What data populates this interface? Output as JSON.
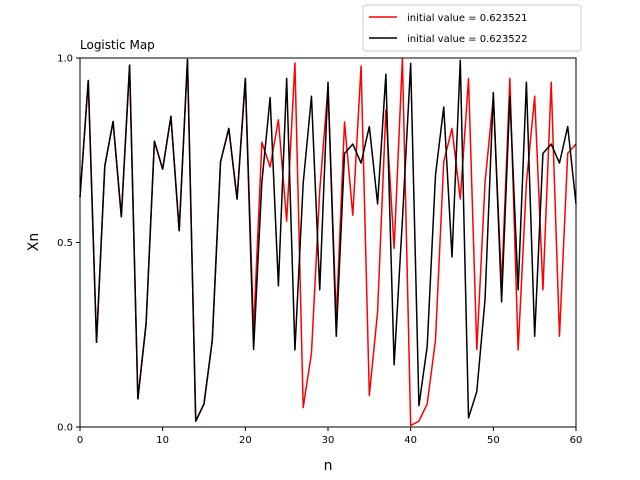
{
  "chart_data": {
    "type": "line",
    "title": "Logistic Map",
    "xlabel": "n",
    "ylabel": "Xn",
    "xlim": [
      0,
      60
    ],
    "ylim": [
      0,
      1
    ],
    "xticks": [
      0,
      10,
      20,
      30,
      40,
      50,
      60
    ],
    "xtick_labels": [
      "0",
      "10",
      "20",
      "30",
      "40",
      "50",
      "60"
    ],
    "yticks": [
      0,
      0.5,
      1.0
    ],
    "ytick_labels": [
      "0.0",
      "0.5",
      "1.0"
    ],
    "grid": false,
    "legend_position": "upper-right (above plot)",
    "x": [
      0,
      1,
      2,
      3,
      4,
      5,
      6,
      7,
      8,
      9,
      10,
      11,
      12,
      13,
      14,
      15,
      16,
      17,
      18,
      19,
      20,
      21,
      22,
      23,
      24,
      25,
      26,
      27,
      28,
      29,
      30,
      31,
      32,
      33,
      34,
      35,
      36,
      37,
      38,
      39,
      40,
      41,
      42,
      43,
      44,
      45,
      46,
      47,
      48,
      49,
      50,
      51,
      52,
      53,
      54,
      55,
      56,
      57,
      58,
      59,
      60
    ],
    "series": [
      {
        "name": "initial value = 0.623521",
        "color": "#ff0000",
        "values": [
          0.6235,
          0.9389,
          0.2295,
          0.7074,
          0.828,
          0.5698,
          0.9806,
          0.0762,
          0.2815,
          0.7745,
          0.6987,
          0.8421,
          0.5318,
          0.996,
          0.0159,
          0.0626,
          0.2347,
          0.7185,
          0.8091,
          0.6179,
          0.9444,
          0.2611,
          0.7717,
          0.7047,
          0.8324,
          0.5579,
          0.9866,
          0.0529,
          0.2003,
          0.6407,
          0.9208,
          0.2917,
          0.8264,
          0.5738,
          0.9782,
          0.0853,
          0.3123,
          0.8591,
          0.4842,
          0.999,
          0.004,
          0.0159,
          0.0626,
          0.2347,
          0.7185,
          0.8091,
          0.6179,
          0.9444,
          0.21,
          0.6636,
          0.8929,
          0.3825,
          0.9447,
          0.2089,
          0.661,
          0.8963,
          0.3718,
          0.9342,
          0.2458,
          0.7415,
          0.7667
        ]
      },
      {
        "name": "initial value = 0.623522",
        "color": "#000000",
        "values": [
          0.6235,
          0.9389,
          0.2295,
          0.7074,
          0.828,
          0.5698,
          0.9806,
          0.0762,
          0.2815,
          0.7745,
          0.6987,
          0.8421,
          0.5318,
          0.996,
          0.0159,
          0.0626,
          0.2347,
          0.7185,
          0.8091,
          0.6179,
          0.9444,
          0.21,
          0.6636,
          0.8929,
          0.3825,
          0.9447,
          0.2089,
          0.661,
          0.8963,
          0.3718,
          0.9342,
          0.2458,
          0.7415,
          0.7667,
          0.7154,
          0.8143,
          0.6048,
          0.9559,
          0.1686,
          0.5606,
          0.9853,
          0.0579,
          0.2182,
          0.6823,
          0.8671,
          0.4609,
          0.9938,
          0.0246,
          0.096,
          0.3471,
          0.9065,
          0.339,
          0.8963,
          0.3718,
          0.9342,
          0.2458,
          0.7415,
          0.7667,
          0.7154,
          0.8143,
          0.6048
        ]
      }
    ]
  }
}
